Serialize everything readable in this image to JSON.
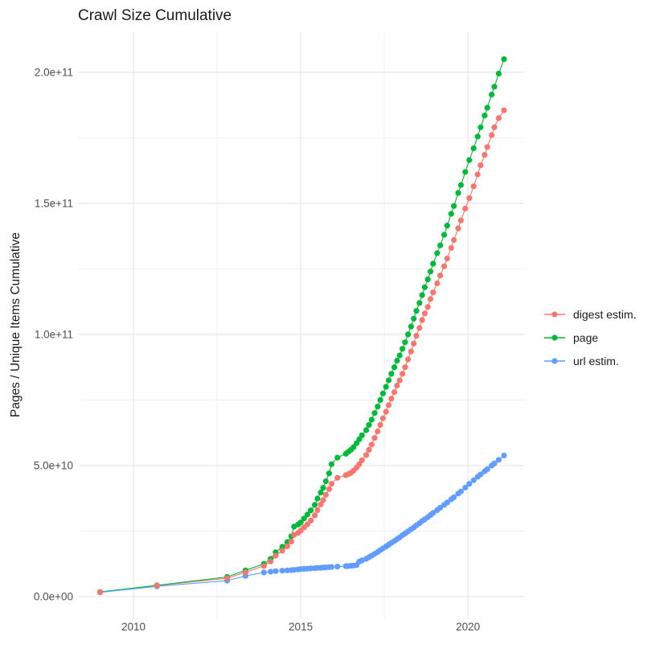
{
  "chart_data": {
    "type": "scatter",
    "title": "Crawl Size Cumulative",
    "xlabel": "",
    "ylabel": "Pages / Unique Items Cumulative",
    "x_tick_labels": [
      "2010",
      "2015",
      "2020"
    ],
    "x_tick_values": [
      2010,
      2015,
      2020
    ],
    "x_minor_tick_values": [
      2012.5,
      2017.5
    ],
    "y_tick_labels": [
      "0.0e+00",
      "5.0e+10",
      "1.0e+11",
      "1.5e+11",
      "2.0e+11"
    ],
    "y_tick_values": [
      0,
      50000000000.0,
      100000000000.0,
      150000000000.0,
      200000000000.0
    ],
    "y_minor_tick_values": [
      25000000000.0,
      75000000000.0,
      125000000000.0,
      175000000000.0
    ],
    "xlim": [
      2008.34,
      2021.68
    ],
    "ylim": [
      -8300000000.0,
      215300000000.0
    ],
    "grid": true,
    "legend_position": "right",
    "x": [
      2009.0,
      2010.7,
      2012.8,
      2013.35,
      2013.9,
      2014.1,
      2014.25,
      2014.45,
      2014.6,
      2014.72,
      2014.8,
      2014.92,
      2015.0,
      2015.1,
      2015.2,
      2015.3,
      2015.42,
      2015.5,
      2015.6,
      2015.67,
      2015.75,
      2015.85,
      2015.92,
      2016.1,
      2016.35,
      2016.42,
      2016.5,
      2016.58,
      2016.67,
      2016.75,
      2016.83,
      2016.96,
      2017.04,
      2017.12,
      2017.21,
      2017.3,
      2017.38,
      2017.46,
      2017.55,
      2017.63,
      2017.71,
      2017.8,
      2017.88,
      2017.96,
      2018.04,
      2018.12,
      2018.21,
      2018.3,
      2018.38,
      2018.46,
      2018.55,
      2018.63,
      2018.71,
      2018.8,
      2018.88,
      2018.96,
      2019.08,
      2019.17,
      2019.29,
      2019.38,
      2019.5,
      2019.58,
      2019.71,
      2019.79,
      2019.92,
      2020.04,
      2020.17,
      2020.29,
      2020.38,
      2020.5,
      2020.58,
      2020.71,
      2020.79,
      2020.92,
      2021.08
    ],
    "series": [
      {
        "name": "digest estim.",
        "color": "#F8766D",
        "values": [
          1700000000.0,
          4200000000.0,
          7000000000.0,
          9300000000.0,
          11700000000.0,
          13400000000.0,
          15600000000.0,
          17500000000.0,
          19200000000.0,
          21000000000.0,
          23500000000.0,
          24300000000.0,
          25200000000.0,
          26400000000.0,
          27600000000.0,
          29000000000.0,
          31000000000.0,
          33000000000.0,
          35200000000.0,
          36800000000.0,
          38800000000.0,
          41000000000.0,
          43000000000.0,
          45300000000.0,
          46300000000.0,
          46700000000.0,
          47200000000.0,
          48000000000.0,
          49200000000.0,
          50500000000.0,
          52000000000.0,
          54000000000.0,
          56000000000.0,
          58000000000.0,
          60500000000.0,
          63000000000.0,
          65500000000.0,
          68000000000.0,
          70500000000.0,
          73000000000.0,
          75500000000.0,
          78000000000.0,
          80500000000.0,
          82500000000.0,
          85000000000.0,
          87500000000.0,
          90500000000.0,
          93500000000.0,
          96500000000.0,
          99500000000.0,
          102500000000.0,
          105500000000.0,
          108000000000.0,
          110500000000.0,
          113500000000.0,
          116000000000.0,
          119500000000.0,
          122500000000.0,
          126000000000.0,
          129000000000.0,
          133000000000.0,
          136000000000.0,
          140500000000.0,
          143500000000.0,
          148000000000.0,
          152000000000.0,
          156500000000.0,
          161000000000.0,
          164500000000.0,
          168500000000.0,
          171500000000.0,
          176000000000.0,
          179000000000.0,
          182500000000.0,
          185500000000.0
        ]
      },
      {
        "name": "page",
        "color": "#00BA38",
        "values": [
          1800000000.0,
          4300000000.0,
          7500000000.0,
          10000000000.0,
          12500000000.0,
          14400000000.0,
          16900000000.0,
          19000000000.0,
          20800000000.0,
          23000000000.0,
          26700000000.0,
          27500000000.0,
          28300000000.0,
          29800000000.0,
          31300000000.0,
          32900000000.0,
          35000000000.0,
          37400000000.0,
          39700000000.0,
          41500000000.0,
          44000000000.0,
          47000000000.0,
          50500000000.0,
          53000000000.0,
          54500000000.0,
          55200000000.0,
          56000000000.0,
          57000000000.0,
          58500000000.0,
          60000000000.0,
          61500000000.0,
          63500000000.0,
          65500000000.0,
          67500000000.0,
          70000000000.0,
          72500000000.0,
          75000000000.0,
          77500000000.0,
          80000000000.0,
          82500000000.0,
          85000000000.0,
          87500000000.0,
          90000000000.0,
          92000000000.0,
          94500000000.0,
          97000000000.0,
          100000000000.0,
          103000000000.0,
          106000000000.0,
          109000000000.0,
          112000000000.0,
          115000000000.0,
          118000000000.0,
          121000000000.0,
          124000000000.0,
          127000000000.0,
          131000000000.0,
          134000000000.0,
          138000000000.0,
          141500000000.0,
          146000000000.0,
          149000000000.0,
          154000000000.0,
          157000000000.0,
          162000000000.0,
          166500000000.0,
          171000000000.0,
          175500000000.0,
          179000000000.0,
          183500000000.0,
          186500000000.0,
          191500000000.0,
          194500000000.0,
          199500000000.0,
          205000000000.0
        ]
      },
      {
        "name": "url estim.",
        "color": "#619CFF",
        "values": [
          1600000000.0,
          3900000000.0,
          6100000000.0,
          7900000000.0,
          9200000000.0,
          9500000000.0,
          9700000000.0,
          9900000000.0,
          10000000000.0,
          10100000000.0,
          10200000000.0,
          10350000000.0,
          10500000000.0,
          10600000000.0,
          10650000000.0,
          10750000000.0,
          10850000000.0,
          10950000000.0,
          11000000000.0,
          11100000000.0,
          11150000000.0,
          11250000000.0,
          11300000000.0,
          11450000000.0,
          11600000000.0,
          11650000000.0,
          11750000000.0,
          11850000000.0,
          12000000000.0,
          13400000000.0,
          13800000000.0,
          14400000000.0,
          15000000000.0,
          15600000000.0,
          16300000000.0,
          17000000000.0,
          17700000000.0,
          18400000000.0,
          19100000000.0,
          19800000000.0,
          20500000000.0,
          21200000000.0,
          21900000000.0,
          22600000000.0,
          23400000000.0,
          24100000000.0,
          24900000000.0,
          25700000000.0,
          26400000000.0,
          27200000000.0,
          28000000000.0,
          28800000000.0,
          29500000000.0,
          30300000000.0,
          31100000000.0,
          31900000000.0,
          33000000000.0,
          33900000000.0,
          35000000000.0,
          35900000000.0,
          37100000000.0,
          37900000000.0,
          39300000000.0,
          40100000000.0,
          41600000000.0,
          43000000000.0,
          44400000000.0,
          45700000000.0,
          46600000000.0,
          47800000000.0,
          48600000000.0,
          50000000000.0,
          50800000000.0,
          52200000000.0,
          53800000000.0
        ]
      }
    ]
  },
  "colors": {
    "background": "#FFFFFF",
    "grid_major": "#E6E6E6",
    "grid_minor": "#F2F2F2",
    "tick_label": "#4D4D4D",
    "text": "#1A1A1A"
  }
}
